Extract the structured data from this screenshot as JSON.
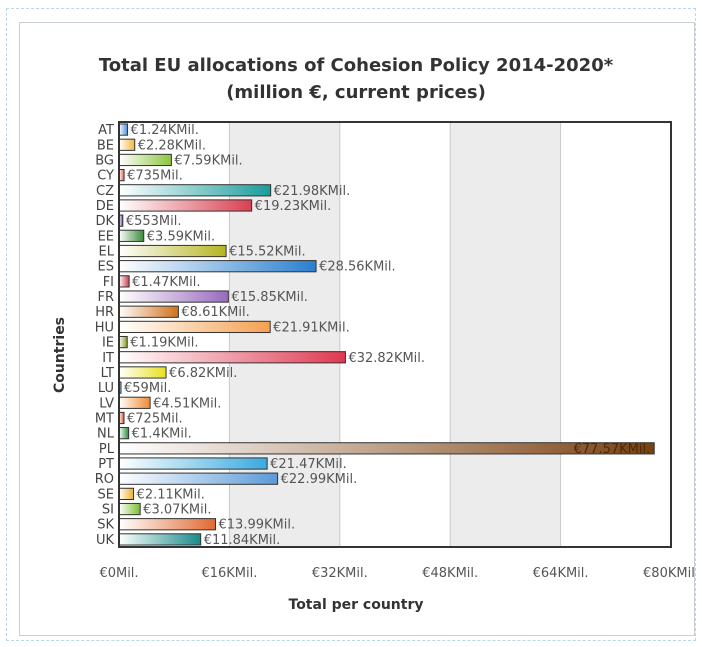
{
  "chart_data": {
    "type": "bar",
    "orientation": "horizontal",
    "title": "Total EU allocations of Cohesion Policy 2014-2020*",
    "subtitle": "(million €, current prices)",
    "xlabel": "Total per country",
    "ylabel": "Countries",
    "xlim": [
      0,
      80000
    ],
    "x_ticks": [
      "€0Mil.",
      "€16KMil.",
      "€32KMil.",
      "€48KMil.",
      "€64KMil.",
      "€80KMil."
    ],
    "grid": true,
    "categories": [
      "AT",
      "BE",
      "BG",
      "CY",
      "CZ",
      "DE",
      "DK",
      "EE",
      "EL",
      "ES",
      "FI",
      "FR",
      "HR",
      "HU",
      "IE",
      "IT",
      "LT",
      "LU",
      "LV",
      "MT",
      "NL",
      "PL",
      "PT",
      "RO",
      "SE",
      "SI",
      "SK",
      "UK"
    ],
    "values": [
      1240,
      2280,
      7590,
      735,
      21980,
      19230,
      553,
      3590,
      15520,
      28560,
      1470,
      15850,
      8610,
      21910,
      1190,
      32820,
      6820,
      59,
      4510,
      725,
      1400,
      77570,
      21470,
      22990,
      2110,
      3070,
      13990,
      11840
    ],
    "data_labels": [
      "€1.24KMil.",
      "€2.28KMil.",
      "€7.59KMil.",
      "€735Mil.",
      "€21.98KMil.",
      "€19.23KMil.",
      "€553Mil.",
      "€3.59KMil.",
      "€15.52KMil.",
      "€28.56KMil.",
      "€1.47KMil.",
      "€15.85KMil.",
      "€8.61KMil.",
      "€21.91KMil.",
      "€1.19KMil.",
      "€32.82KMil.",
      "€6.82KMil.",
      "€59Mil.",
      "€4.51KMil.",
      "€725Mil.",
      "€1.4KMil.",
      "€77.57KMil.",
      "€21.47KMil.",
      "€22.99KMil.",
      "€2.11KMil.",
      "€3.07KMil.",
      "€13.99KMil.",
      "€11.84KMil."
    ],
    "colors": [
      "#4a90d9",
      "#f5b740",
      "#8cc63e",
      "#e8604c",
      "#1a9c9c",
      "#d94050",
      "#6a4aa0",
      "#3a8a3a",
      "#b5b520",
      "#2a7fd0",
      "#c83a50",
      "#9a6abe",
      "#d0701a",
      "#f5a050",
      "#8a9a20",
      "#e03850",
      "#e8e020",
      "#50a0d0",
      "#f08a30",
      "#e05030",
      "#2a8a3a",
      "#7a4010",
      "#3aaae0",
      "#5a9ad8",
      "#f0b030",
      "#7abe30",
      "#e06a30",
      "#1a8a8a"
    ]
  }
}
